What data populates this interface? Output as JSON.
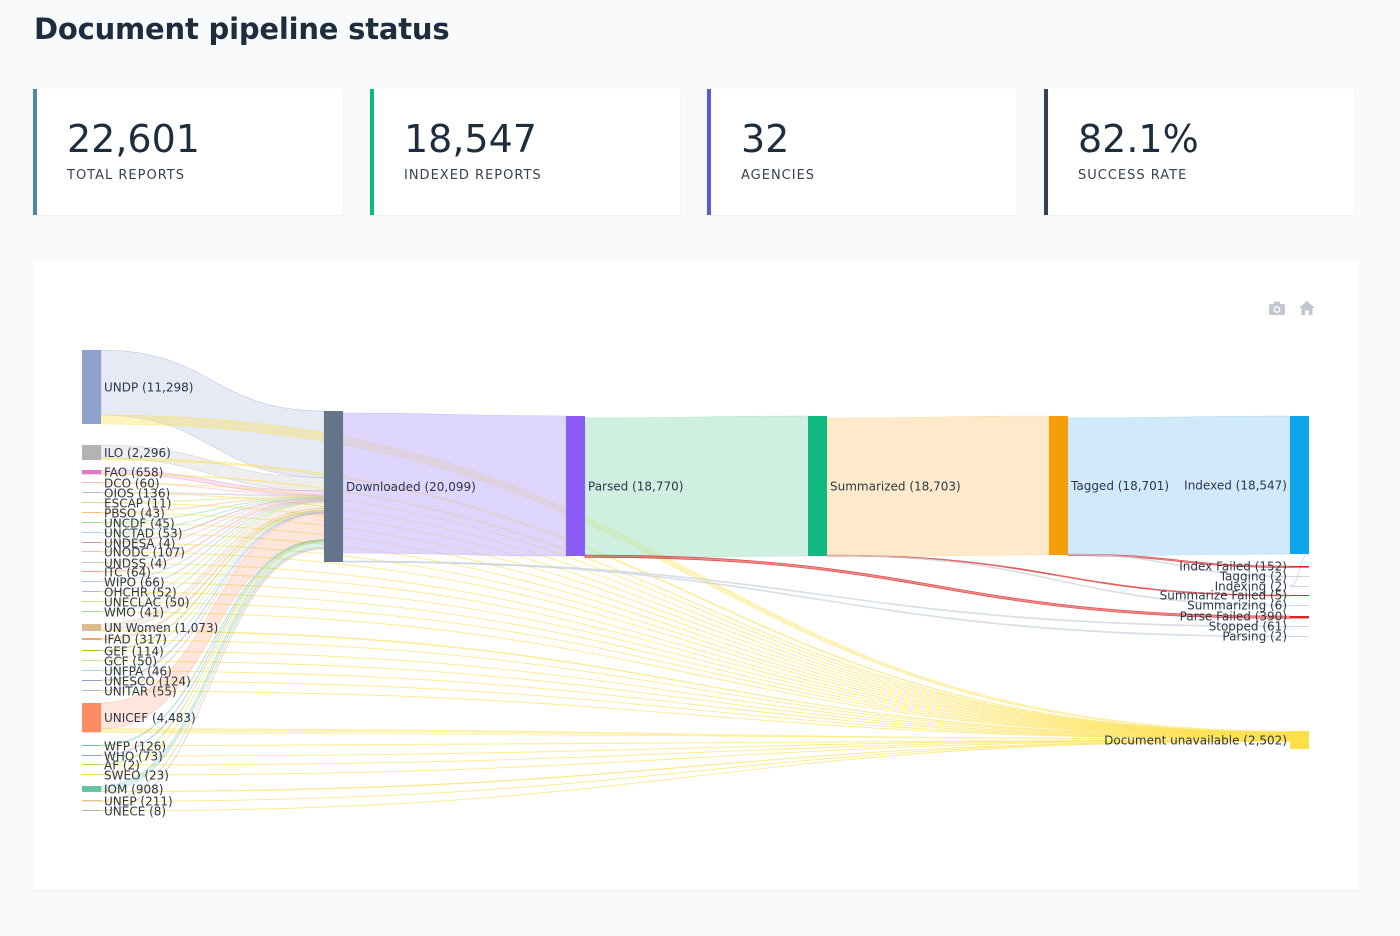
{
  "page": {
    "title": "Document pipeline status"
  },
  "kpis": [
    {
      "value": "22,601",
      "label": "TOTAL REPORTS",
      "color": "#4f8a9c"
    },
    {
      "value": "18,547",
      "label": "INDEXED REPORTS",
      "color": "#10b981"
    },
    {
      "value": "32",
      "label": "AGENCIES",
      "color": "#5b5bd6"
    },
    {
      "value": "82.1%",
      "label": "SUCCESS RATE",
      "color": "#334155"
    }
  ],
  "toolbar": {
    "camera_icon": "camera-icon",
    "home_icon": "home-icon"
  },
  "chart_data": {
    "type": "sankey",
    "agencies": [
      {
        "label": "UNDP (11,298)",
        "value": 11298,
        "color": "#8fa1cc"
      },
      {
        "label": "ILO (2,296)",
        "value": 2296,
        "color": "#b3b3b3"
      },
      {
        "label": "FAO (658)",
        "value": 658,
        "color": "#e377c2"
      },
      {
        "label": "DCO (60)",
        "value": 60,
        "color": "#f7b6d2"
      },
      {
        "label": "OIOS (136)",
        "value": 136,
        "color": "#c5b0d5"
      },
      {
        "label": "ESCAP (11)",
        "value": 11,
        "color": "#dbdb8d"
      },
      {
        "label": "PBSO (43)",
        "value": 43,
        "color": "#ffbb78"
      },
      {
        "label": "UNCDF (45)",
        "value": 45,
        "color": "#98df8a"
      },
      {
        "label": "UNCTAD (53)",
        "value": 53,
        "color": "#9edae5"
      },
      {
        "label": "UNDESA (4)",
        "value": 4,
        "color": "#c49c94"
      },
      {
        "label": "UNODC (107)",
        "value": 107,
        "color": "#f7b6d2"
      },
      {
        "label": "UNDSS (4)",
        "value": 4,
        "color": "#c7c7c7"
      },
      {
        "label": "ITC (64)",
        "value": 64,
        "color": "#ff9896"
      },
      {
        "label": "WIPO (66)",
        "value": 66,
        "color": "#aec7e8"
      },
      {
        "label": "OHCHR (52)",
        "value": 52,
        "color": "#c5b0d5"
      },
      {
        "label": "UNECLAC (50)",
        "value": 50,
        "color": "#dbdb8d"
      },
      {
        "label": "WMO (41)",
        "value": 41,
        "color": "#98df8a"
      },
      {
        "label": "UN Women (1,073)",
        "value": 1073,
        "color": "#dcbb8f"
      },
      {
        "label": "IFAD (317)",
        "value": 317,
        "color": "#e8a86b"
      },
      {
        "label": "GEF (114)",
        "value": 114,
        "color": "#bcbd22"
      },
      {
        "label": "GCF (50)",
        "value": 50,
        "color": "#dbdb8d"
      },
      {
        "label": "UNFPA (46)",
        "value": 46,
        "color": "#9edae5"
      },
      {
        "label": "UNESCO (124)",
        "value": 124,
        "color": "#8fa1cc"
      },
      {
        "label": "UNITAR (55)",
        "value": 55,
        "color": "#c5b0d5"
      },
      {
        "label": "UNICEF (4,483)",
        "value": 4483,
        "color": "#fc8d62"
      },
      {
        "label": "WFP (126)",
        "value": 126,
        "color": "#66c2a5"
      },
      {
        "label": "WHO (73)",
        "value": 73,
        "color": "#8da0cb"
      },
      {
        "label": "AF (2)",
        "value": 2,
        "color": "#a6d854"
      },
      {
        "label": "SWEO (23)",
        "value": 23,
        "color": "#ffd92f"
      },
      {
        "label": "IOM (908)",
        "value": 908,
        "color": "#66c2a5"
      },
      {
        "label": "UNEP (211)",
        "value": 211,
        "color": "#e5c494"
      },
      {
        "label": "UNECE (8)",
        "value": 8,
        "color": "#b3b3b3"
      }
    ],
    "stages": [
      {
        "label": "Downloaded (20,099)",
        "value": 20099,
        "color": "#64748b"
      },
      {
        "label": "Parsed (18,770)",
        "value": 18770,
        "color": "#8b5cf6"
      },
      {
        "label": "Summarized (18,703)",
        "value": 18703,
        "color": "#10b981"
      },
      {
        "label": "Tagged (18,701)",
        "value": 18701,
        "color": "#f59e0b"
      },
      {
        "label": "Indexed (18,547)",
        "value": 18547,
        "color": "#0ea5e9"
      }
    ],
    "outcomes": [
      {
        "label": "Index Failed (152)",
        "value": 152,
        "color": "#dc2626"
      },
      {
        "label": "Tagging (2)",
        "value": 2,
        "color": "#cbd5e1"
      },
      {
        "label": "Indexing (2)",
        "value": 2,
        "color": "#cbd5e1"
      },
      {
        "label": "Summarize Failed (5)",
        "value": 5,
        "color": "#dc2626"
      },
      {
        "label": "Summarizing (6)",
        "value": 6,
        "color": "#cbd5e1"
      },
      {
        "label": "Parse Failed (390)",
        "value": 390,
        "color": "#dc2626"
      },
      {
        "label": "Stopped (61)",
        "value": 61,
        "color": "#cbd5e1"
      },
      {
        "label": "Parsing (2)",
        "value": 2,
        "color": "#cbd5e1"
      }
    ],
    "unavailable": {
      "label": "Document unavailable (2,502)",
      "value": 2502,
      "color": "#fde047"
    }
  }
}
